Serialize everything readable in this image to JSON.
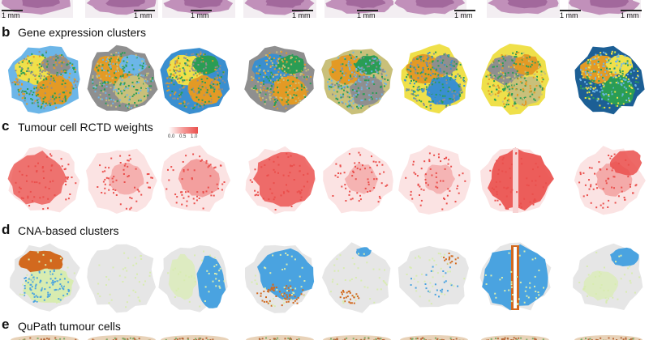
{
  "panels": {
    "b": {
      "letter": "b",
      "title": "Gene expression clusters"
    },
    "c": {
      "letter": "c",
      "title": "Tumour cell RCTD weights"
    },
    "d": {
      "letter": "d",
      "title": "CNA-based clusters"
    },
    "e": {
      "letter": "e",
      "title": "QuPath tumour cells"
    }
  },
  "scalebar": {
    "label": "1 mm"
  },
  "colorbar": {
    "ticks": [
      "0.0",
      "0.5",
      "1.0"
    ]
  },
  "samples_count": 8,
  "colors": {
    "he_tissue": "#b77fb0",
    "rctd_high": "#ea4f4c",
    "rctd_low": "#fbe3e3",
    "cna_background": "#e6e6e6",
    "cna_blue": "#4aa3e0",
    "cna_orange": "#d2691e",
    "cna_lightgreen": "#d8ecb0",
    "ge_blue": "#3a8fd0",
    "ge_lightblue": "#6cb6e8",
    "ge_gray": "#8f8f8f",
    "ge_orange": "#e39a25",
    "ge_yellow": "#efe04a",
    "ge_green": "#2a9d55",
    "ge_olive": "#c9c07a",
    "ge_darkblue": "#1c5f95"
  }
}
